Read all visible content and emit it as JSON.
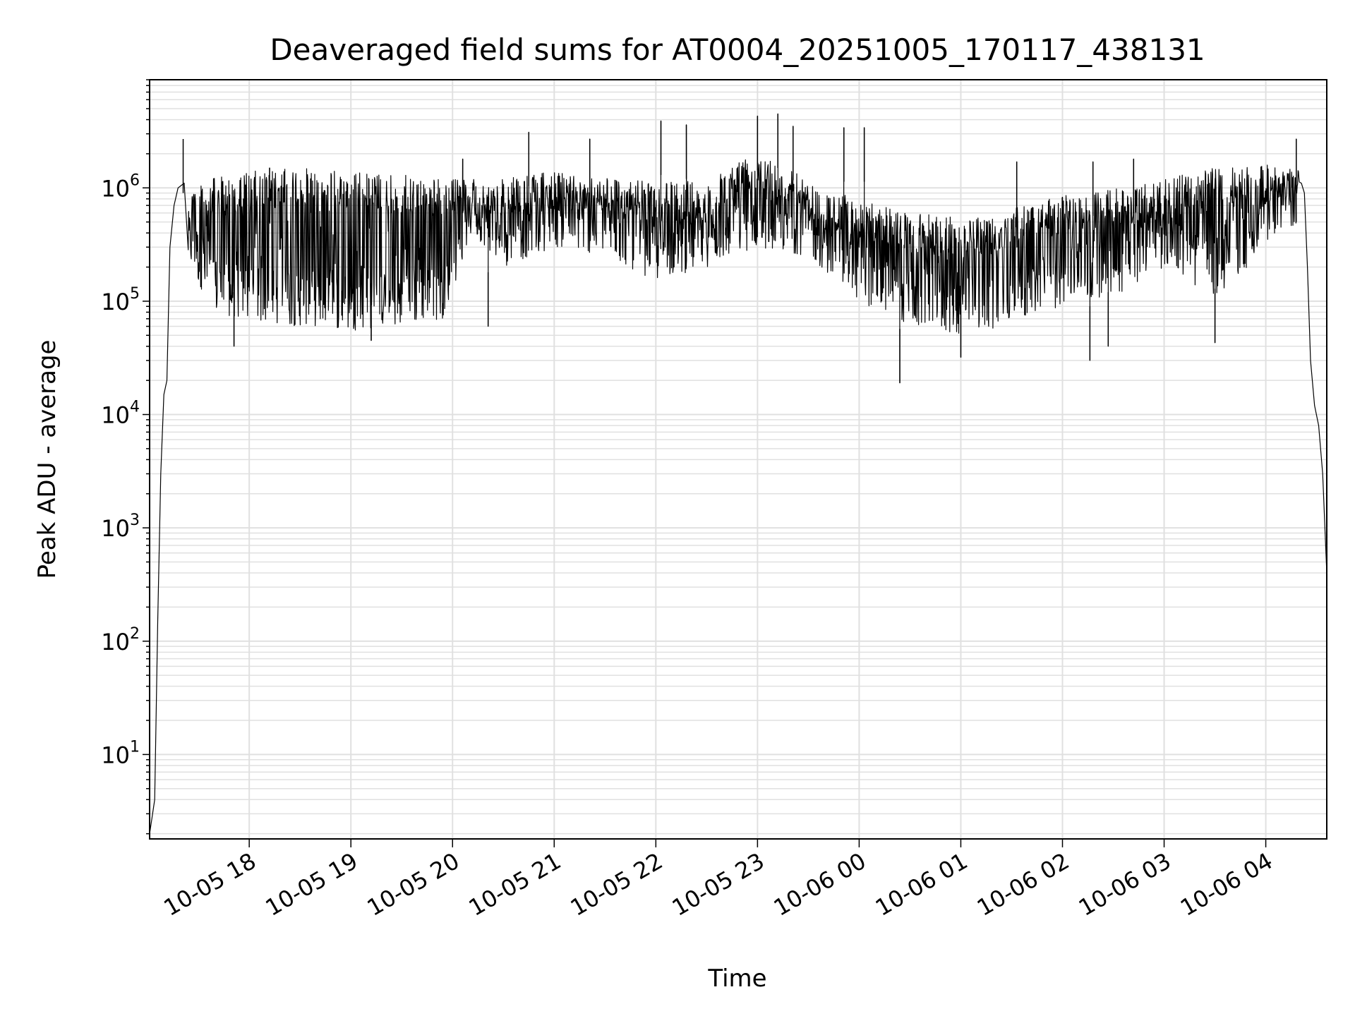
{
  "chart_data": {
    "type": "line",
    "title": "Deaveraged field sums for AT0004_20251005_170117_438131",
    "xlabel": "Time",
    "ylabel": "Peak ADU - average",
    "yscale": "log",
    "ylim": [
      1.8,
      9000000
    ],
    "xlim_hours": [
      17.02,
      28.6
    ],
    "grid": true,
    "x_tick_labels": [
      "10-05 18",
      "10-05 19",
      "10-05 20",
      "10-05 21",
      "10-05 22",
      "10-05 23",
      "10-06 00",
      "10-06 01",
      "10-06 02",
      "10-06 03",
      "10-06 04"
    ],
    "x_tick_hours": [
      18,
      19,
      20,
      21,
      22,
      23,
      24,
      25,
      26,
      27,
      28
    ],
    "y_ticks": [
      {
        "base": "10",
        "exp": "1",
        "value": 10
      },
      {
        "base": "10",
        "exp": "2",
        "value": 100
      },
      {
        "base": "10",
        "exp": "3",
        "value": 1000
      },
      {
        "base": "10",
        "exp": "4",
        "value": 10000
      },
      {
        "base": "10",
        "exp": "5",
        "value": 100000
      },
      {
        "base": "10",
        "exp": "6",
        "value": 1000000
      }
    ],
    "series": [
      {
        "name": "field sums",
        "color": "#000000",
        "startup_ramp": [
          [
            17.02,
            2
          ],
          [
            17.07,
            4
          ],
          [
            17.1,
            150
          ],
          [
            17.13,
            3000
          ],
          [
            17.16,
            15000
          ],
          [
            17.19,
            20000
          ],
          [
            17.22,
            300000
          ],
          [
            17.26,
            700000
          ],
          [
            17.3,
            1000000
          ],
          [
            17.36,
            1100000
          ]
        ],
        "shutdown_ramp": [
          [
            28.35,
            1100000
          ],
          [
            28.38,
            900000
          ],
          [
            28.41,
            200000
          ],
          [
            28.44,
            30000
          ],
          [
            28.48,
            12000
          ],
          [
            28.52,
            8000
          ],
          [
            28.56,
            3000
          ],
          [
            28.6,
            400
          ]
        ],
        "upper_envelope": [
          [
            17.4,
            1100000
          ],
          [
            18,
            1400000
          ],
          [
            18.5,
            1500000
          ],
          [
            19,
            1400000
          ],
          [
            19.5,
            1300000
          ],
          [
            20,
            1200000
          ],
          [
            20.5,
            1200000
          ],
          [
            21,
            1400000
          ],
          [
            21.5,
            1300000
          ],
          [
            22,
            1100000
          ],
          [
            22.5,
            1200000
          ],
          [
            23,
            2200000
          ],
          [
            23.3,
            1600000
          ],
          [
            23.6,
            1000000
          ],
          [
            24,
            800000
          ],
          [
            24.5,
            600000
          ],
          [
            25,
            550000
          ],
          [
            25.4,
            600000
          ],
          [
            25.8,
            800000
          ],
          [
            26.2,
            900000
          ],
          [
            26.6,
            1000000
          ],
          [
            27,
            1200000
          ],
          [
            27.5,
            1500000
          ],
          [
            28,
            1600000
          ],
          [
            28.33,
            1500000
          ]
        ],
        "lower_envelope": [
          [
            17.4,
            200000
          ],
          [
            17.7,
            70000
          ],
          [
            18,
            65000
          ],
          [
            18.5,
            60000
          ],
          [
            19,
            55000
          ],
          [
            19.5,
            60000
          ],
          [
            19.9,
            70000
          ],
          [
            20.2,
            400000
          ],
          [
            20.5,
            200000
          ],
          [
            21,
            300000
          ],
          [
            21.5,
            250000
          ],
          [
            22,
            150000
          ],
          [
            22.5,
            200000
          ],
          [
            23,
            300000
          ],
          [
            23.5,
            250000
          ],
          [
            24,
            100000
          ],
          [
            24.5,
            60000
          ],
          [
            25,
            50000
          ],
          [
            25.4,
            60000
          ],
          [
            25.8,
            80000
          ],
          [
            26.2,
            100000
          ],
          [
            26.6,
            120000
          ],
          [
            27,
            200000
          ],
          [
            27.5,
            100000
          ],
          [
            28,
            300000
          ],
          [
            28.33,
            500000
          ]
        ],
        "spikes": [
          [
            17.35,
            2700000
          ],
          [
            18.2,
            1500000
          ],
          [
            20.1,
            1800000
          ],
          [
            20.75,
            3100000
          ],
          [
            21.35,
            2700000
          ],
          [
            22.05,
            3900000
          ],
          [
            22.3,
            3600000
          ],
          [
            23,
            4300000
          ],
          [
            23.2,
            4500000
          ],
          [
            23.35,
            3500000
          ],
          [
            23.85,
            3400000
          ],
          [
            24.05,
            3400000
          ],
          [
            25.55,
            1700000
          ],
          [
            26.3,
            1700000
          ],
          [
            26.7,
            1800000
          ],
          [
            28.3,
            2700000
          ]
        ],
        "dips": [
          [
            17.85,
            40000
          ],
          [
            19.2,
            45000
          ],
          [
            20.35,
            60000
          ],
          [
            24.4,
            19000
          ],
          [
            25,
            32000
          ],
          [
            26.27,
            30000
          ],
          [
            26.45,
            40000
          ],
          [
            27.5,
            43000
          ]
        ]
      }
    ]
  }
}
